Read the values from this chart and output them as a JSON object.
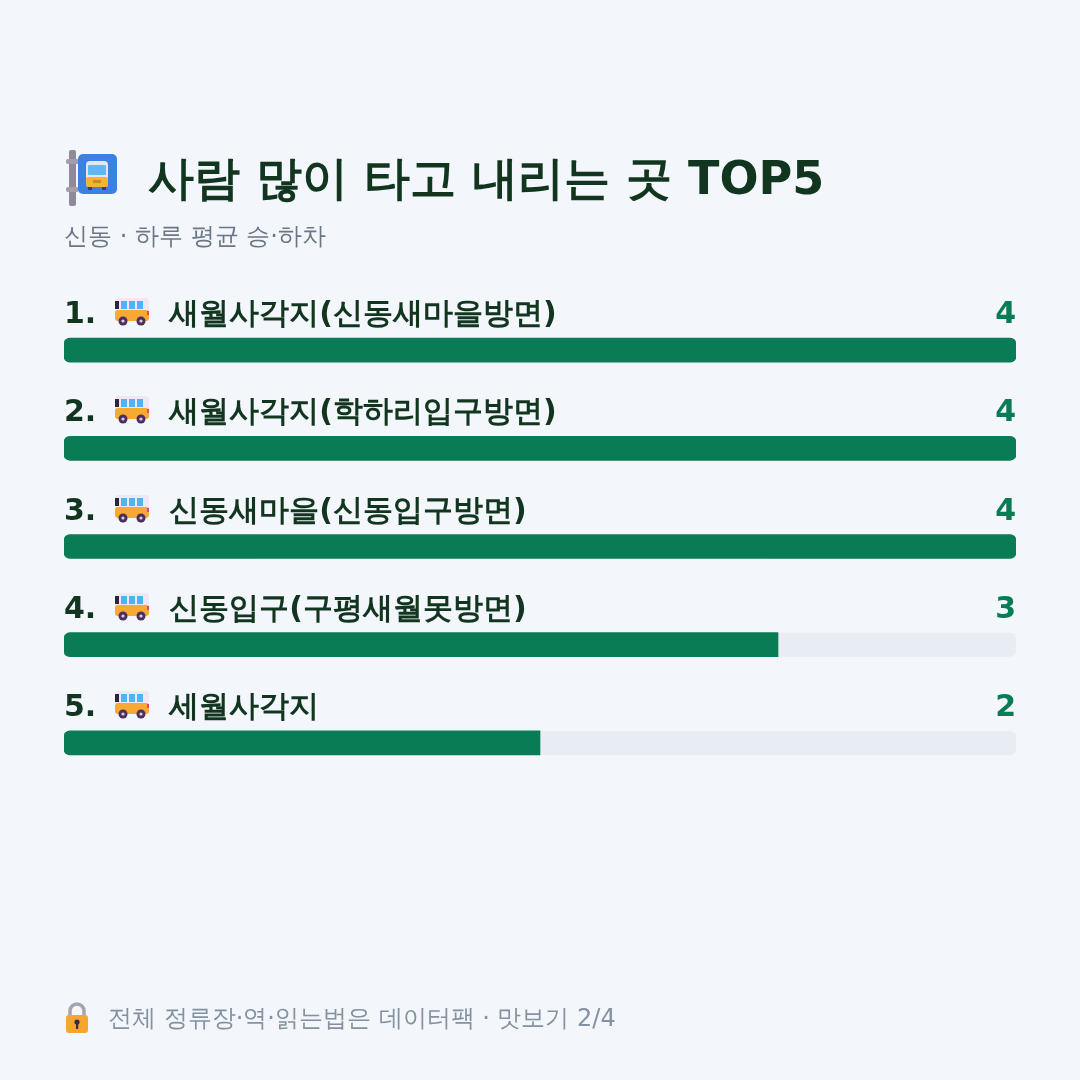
{
  "chart_data": {
    "type": "bar",
    "orientation": "horizontal",
    "title": "사람 많이 타고 내리는 곳 TOP5",
    "subtitle": "신동 · 하루 평균 승·하차",
    "categories": [
      "1. 새월사각지(신동새마을방면)",
      "2. 새월사각지(학하리입구방면)",
      "3. 신동새마을(신동입구방면)",
      "4. 신동입구(구평새월못방면)",
      "5. 세월사각지"
    ],
    "values": [
      4,
      4,
      4,
      3,
      2
    ],
    "color": "#0a7c55",
    "xlim": [
      0,
      4
    ],
    "tick_labels": "y",
    "grid": false,
    "legend": false,
    "data_labels": true,
    "annotations": [
      "전체 정류장·역·읽는법은 데이터팩 · 맛보기 2/4"
    ]
  }
}
